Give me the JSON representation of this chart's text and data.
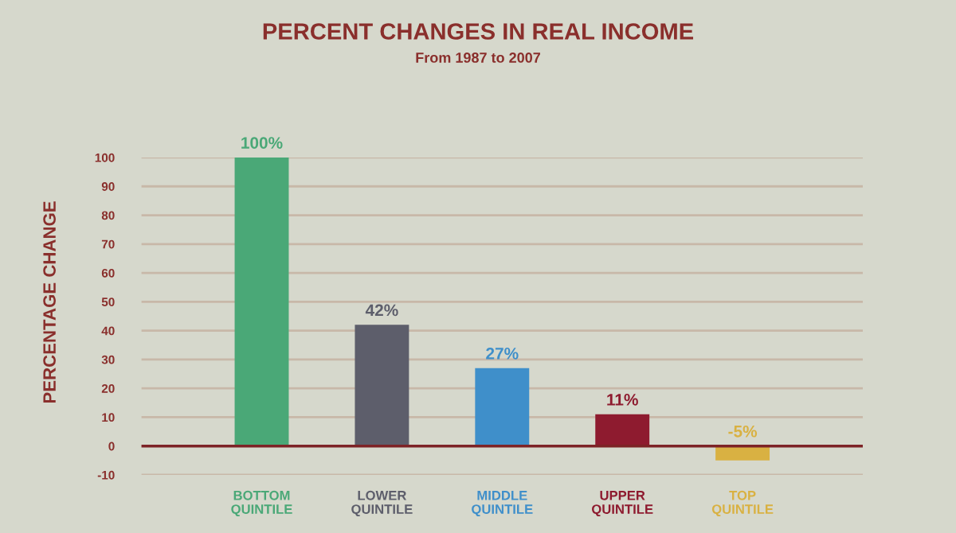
{
  "chart_data": {
    "type": "bar",
    "title": "PERCENT CHANGES IN REAL INCOME",
    "subtitle": "From 1987 to 2007",
    "ylabel": "PERCENTAGE CHANGE",
    "categories": [
      "BOTTOM\nQUINTILE",
      "LOWER\nQUINTILE",
      "MIDDLE\nQUINTILE",
      "UPPER\nQUINTILE",
      "TOP\nQUINTILE"
    ],
    "values": [
      100,
      42,
      27,
      11,
      -5
    ],
    "colors": [
      "#4aa877",
      "#5d5e6b",
      "#3f8fca",
      "#8e1b2f",
      "#d9b142"
    ],
    "value_labels": [
      "100%",
      "42%",
      "27%",
      "11%",
      "-5%"
    ],
    "ylim": [
      -10,
      100
    ],
    "yticks": [
      -10,
      0,
      10,
      20,
      30,
      40,
      50,
      60,
      70,
      80,
      90,
      100
    ],
    "grid": "y",
    "ref_lines": [
      {
        "axis": "y",
        "value": 0,
        "color": "#7d2326"
      }
    ]
  }
}
